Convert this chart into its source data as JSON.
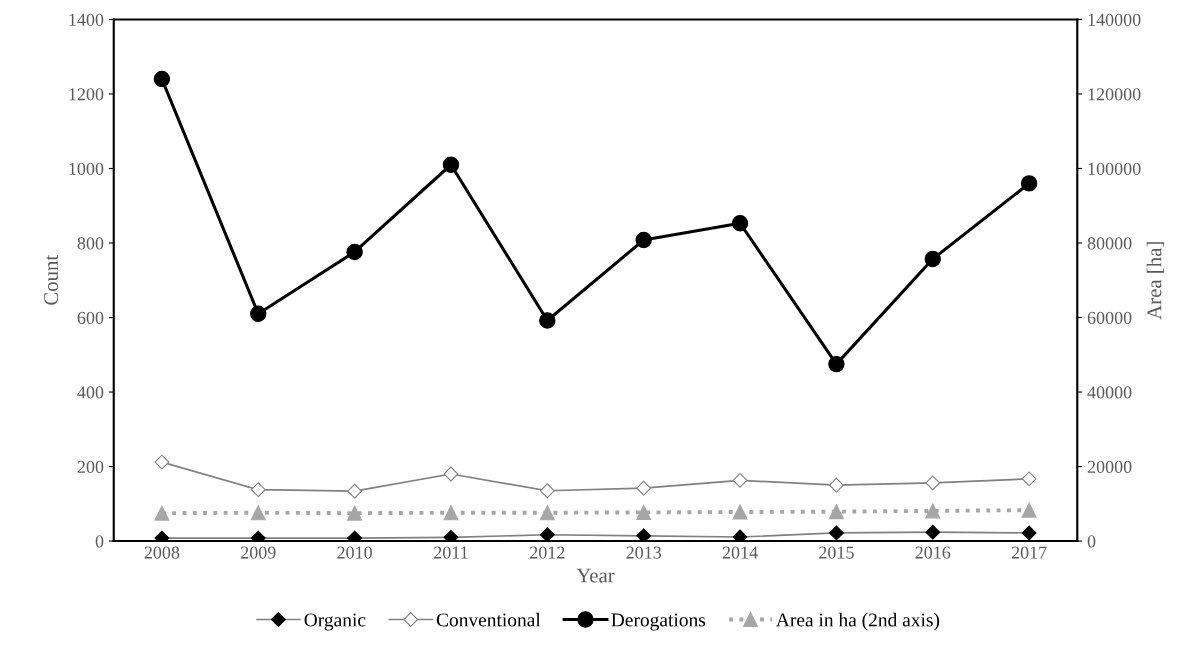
{
  "chart_data": {
    "type": "line",
    "xlabel": "Year",
    "ylabel": "Count",
    "y2label": "Area [ha]",
    "categories": [
      "2008",
      "2009",
      "2010",
      "2011",
      "2012",
      "2013",
      "2014",
      "2015",
      "2016",
      "2017"
    ],
    "ylim": [
      0,
      1400
    ],
    "yticks": [
      0,
      200,
      400,
      600,
      800,
      1000,
      1200,
      1400
    ],
    "y2lim": [
      0,
      140000
    ],
    "y2ticks": [
      0,
      20000,
      40000,
      60000,
      80000,
      100000,
      120000,
      140000
    ],
    "grid": false,
    "legend": "bottom",
    "series": [
      {
        "name": "Organic",
        "color": "#000000",
        "marker": "diamond",
        "line_style": "solid",
        "values": [
          8,
          8,
          8,
          10,
          17,
          14,
          11,
          22,
          24,
          22
        ]
      },
      {
        "name": "Conventional",
        "color": "#808080",
        "marker": "diamond",
        "line_style": "solid",
        "values": [
          212,
          138,
          134,
          180,
          135,
          142,
          163,
          150,
          156,
          167
        ]
      },
      {
        "name": "Derogations",
        "color": "#000000",
        "marker": "circle",
        "line_style": "solid",
        "values": [
          1240,
          610,
          776,
          1010,
          592,
          808,
          853,
          475,
          757,
          960
        ]
      },
      {
        "name": "Area in ha (2nd axis)",
        "color": "#a6a6a6",
        "marker": "triangle",
        "line_style": "dotted",
        "axis": "y2",
        "values": [
          7500,
          7600,
          7500,
          7600,
          7600,
          7700,
          7800,
          7900,
          8100,
          8300
        ]
      }
    ]
  }
}
